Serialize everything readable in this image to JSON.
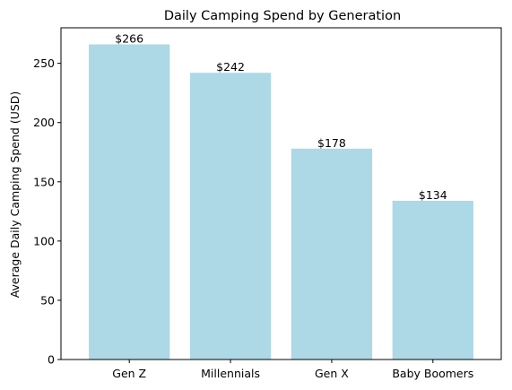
{
  "chart_data": {
    "type": "bar",
    "title": "Daily Camping Spend by Generation",
    "xlabel": "",
    "ylabel": "Average Daily Camping Spend (USD)",
    "categories": [
      "Gen Z",
      "Millennials",
      "Gen X",
      "Baby Boomers"
    ],
    "values": [
      266,
      242,
      178,
      134
    ],
    "data_labels": [
      "$266",
      "$242",
      "$178",
      "$134"
    ],
    "ylim": [
      0,
      280
    ],
    "yticks": [
      0,
      50,
      100,
      150,
      200,
      250
    ],
    "grid": false,
    "legend": "none",
    "bar_color": "#add8e6"
  }
}
